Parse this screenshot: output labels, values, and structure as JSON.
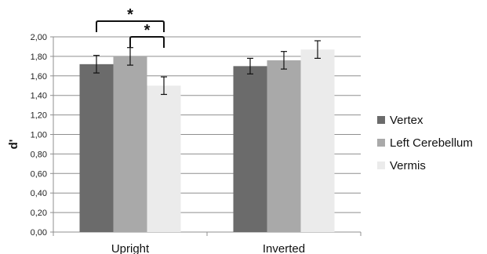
{
  "chart_data": {
    "type": "bar",
    "ylabel": "d'",
    "ylim": [
      0,
      2
    ],
    "yticks": [
      "0,00",
      "0,20",
      "0,40",
      "0,60",
      "0,80",
      "1,00",
      "1,20",
      "1,40",
      "1,60",
      "1,80",
      "2,00"
    ],
    "grid": true,
    "legend_position": "right",
    "categories": [
      "Upright",
      "Inverted"
    ],
    "series": [
      {
        "name": "Vertex",
        "color": "#6b6b6b",
        "values": [
          1.72,
          1.7
        ],
        "errors": [
          0.09,
          0.08
        ]
      },
      {
        "name": "Left Cerebellum",
        "color": "#a9a9a9",
        "values": [
          1.8,
          1.76
        ],
        "errors": [
          0.09,
          0.09
        ]
      },
      {
        "name": "Vermis",
        "color": "#ebebeb",
        "values": [
          1.5,
          1.87
        ],
        "errors": [
          0.09,
          0.09
        ]
      }
    ],
    "annotations": [
      {
        "text": "*",
        "category": "Upright",
        "from_series": "Vertex",
        "to_series": "Vermis"
      },
      {
        "text": "*",
        "category": "Upright",
        "from_series": "Left Cerebellum",
        "to_series": "Vermis"
      }
    ]
  }
}
